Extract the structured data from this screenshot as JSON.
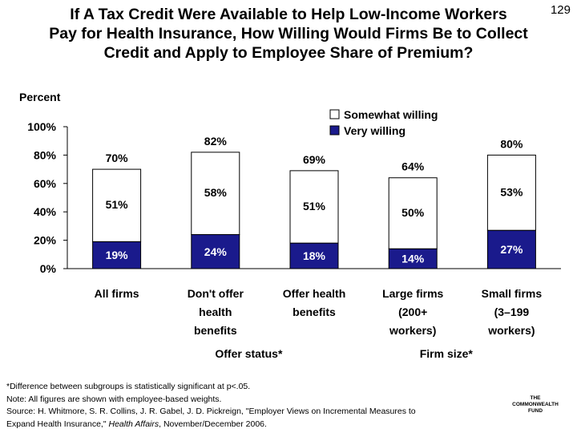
{
  "header": {
    "title_line1": "If A Tax Credit Were Available to Help Low-Income Workers",
    "title_line2": "Pay for Health Insurance, How Willing Would Firms Be to Collect",
    "title_line3": "Credit and Apply to Employee Share of Premium?",
    "slide_number": "129"
  },
  "chart_data": {
    "type": "bar",
    "stacked": true,
    "ylabel": "Percent",
    "ylim": [
      0,
      100
    ],
    "yticks": [
      "0%",
      "20%",
      "40%",
      "60%",
      "80%",
      "100%"
    ],
    "categories": [
      [
        "All firms"
      ],
      [
        "Don't offer",
        "health",
        "benefits"
      ],
      [
        "Offer health",
        "benefits"
      ],
      [
        "Large firms",
        "(200+",
        "workers)"
      ],
      [
        "Small firms",
        "(3–199",
        "workers)"
      ]
    ],
    "series": [
      {
        "name": "Very willing",
        "values": [
          19,
          24,
          18,
          14,
          27
        ],
        "labels": [
          "19%",
          "24%",
          "18%",
          "14%",
          "27%"
        ],
        "color": "#1a1a8c"
      },
      {
        "name": "Somewhat willing",
        "values": [
          51,
          58,
          51,
          50,
          53
        ],
        "labels": [
          "51%",
          "58%",
          "51%",
          "50%",
          "53%"
        ],
        "color": "#ffffff"
      }
    ],
    "totals": [
      "70%",
      "82%",
      "69%",
      "64%",
      "80%"
    ],
    "legend": [
      "Somewhat willing",
      "Very willing"
    ],
    "legend_position": "top-right",
    "group_labels": [
      "Offer status*",
      "Firm size*"
    ]
  },
  "footnotes": {
    "line1": "*Difference between subgroups is statistically significant at p<.05.",
    "line2": "Note: All figures are shown with employee-based weights.",
    "line3": "Source: H. Whitmore, S. R. Collins, J. R. Gabel, J. D. Pickreign, \"Employer Views on Incremental Measures to",
    "line4_pre": "Expand Health Insurance,\" ",
    "line4_journal": "Health Affairs",
    "line4_post": ", November/December 2006."
  },
  "logo": {
    "line1": "THE",
    "line2": "COMMONWEALTH",
    "line3": "FUND"
  }
}
